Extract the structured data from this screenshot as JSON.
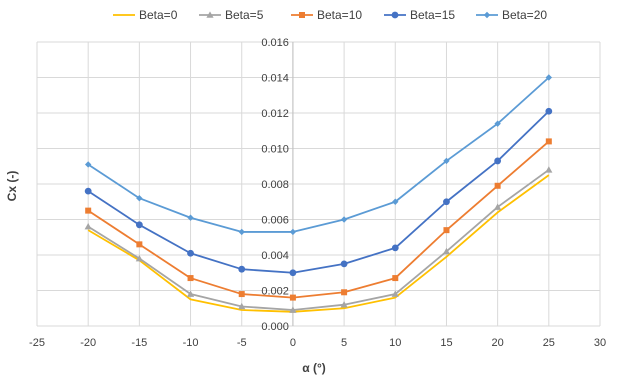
{
  "chart_data": {
    "type": "line",
    "title": "",
    "xlabel": "α (°)",
    "ylabel": "Cx (-)",
    "xlim": [
      -25,
      30
    ],
    "ylim": [
      0,
      0.016
    ],
    "x_ticks": [
      -25,
      -20,
      -15,
      -10,
      -5,
      0,
      5,
      10,
      15,
      20,
      25,
      30
    ],
    "y_ticks": [
      "0.000",
      "0.002",
      "0.004",
      "0.006",
      "0.008",
      "0.010",
      "0.012",
      "0.014",
      "0.016"
    ],
    "grid": "vertical and horizontal",
    "legend_position": "top",
    "x": [
      -20,
      -15,
      -10,
      -5,
      0,
      5,
      10,
      15,
      20,
      25
    ],
    "series": [
      {
        "name": "Beta=0",
        "color": "#FFC000",
        "marker": "none",
        "values": [
          0.0054,
          0.0037,
          0.0015,
          0.0009,
          0.0008,
          0.001,
          0.0016,
          0.0039,
          0.0064,
          0.0085
        ]
      },
      {
        "name": "Beta=5",
        "color": "#A5A5A5",
        "marker": "triangle",
        "values": [
          0.0056,
          0.0038,
          0.0018,
          0.0011,
          0.0009,
          0.0012,
          0.0018,
          0.0042,
          0.0067,
          0.0088
        ]
      },
      {
        "name": "Beta=10",
        "color": "#ED7D31",
        "marker": "square",
        "values": [
          0.0065,
          0.0046,
          0.0027,
          0.0018,
          0.0016,
          0.0019,
          0.0027,
          0.0054,
          0.0079,
          0.0104
        ]
      },
      {
        "name": "Beta=15",
        "color": "#4472C4",
        "marker": "circle",
        "values": [
          0.0076,
          0.0057,
          0.0041,
          0.0032,
          0.003,
          0.0035,
          0.0044,
          0.007,
          0.0093,
          0.0121
        ]
      },
      {
        "name": "Beta=20",
        "color": "#5B9BD5",
        "marker": "diamond",
        "values": [
          0.0091,
          0.0072,
          0.0061,
          0.0053,
          0.0053,
          0.006,
          0.007,
          0.0093,
          0.0114,
          0.014
        ]
      }
    ]
  }
}
